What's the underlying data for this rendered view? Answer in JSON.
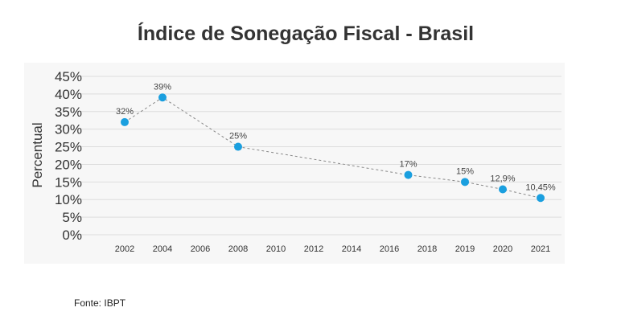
{
  "chart_data": {
    "type": "line",
    "title": "Índice de Sonegação Fiscal - Brasil",
    "xlabel": "",
    "ylabel": "Percentual",
    "categories": [
      "2002",
      "2004",
      "2006",
      "2008",
      "2010",
      "2012",
      "2014",
      "2016",
      "2018",
      "2019",
      "2020",
      "2021"
    ],
    "yticks": [
      "0%",
      "5%",
      "10%",
      "15%",
      "20%",
      "25%",
      "30%",
      "35%",
      "40%",
      "45%"
    ],
    "ylim": [
      0,
      45
    ],
    "grid": true,
    "legend": "none",
    "series": [
      {
        "points": [
          {
            "x": 2002,
            "y": 32,
            "label": "32%"
          },
          {
            "x": 2004,
            "y": 39,
            "label": "39%"
          },
          {
            "x": 2008,
            "y": 25,
            "label": "25%"
          },
          {
            "x": 2017,
            "y": 17,
            "label": "17%"
          },
          {
            "x": 2019,
            "y": 15,
            "label": "15%"
          },
          {
            "x": 2020,
            "y": 12.9,
            "label": "12,9%"
          },
          {
            "x": 2021,
            "y": 10.45,
            "label": "10,45%"
          }
        ]
      }
    ],
    "colors": {
      "marker": "#1a9fdf",
      "line": "#888888",
      "grid": "#dddddd",
      "panel": "#f7f7f7"
    }
  },
  "source": "Fonte: IBPT"
}
